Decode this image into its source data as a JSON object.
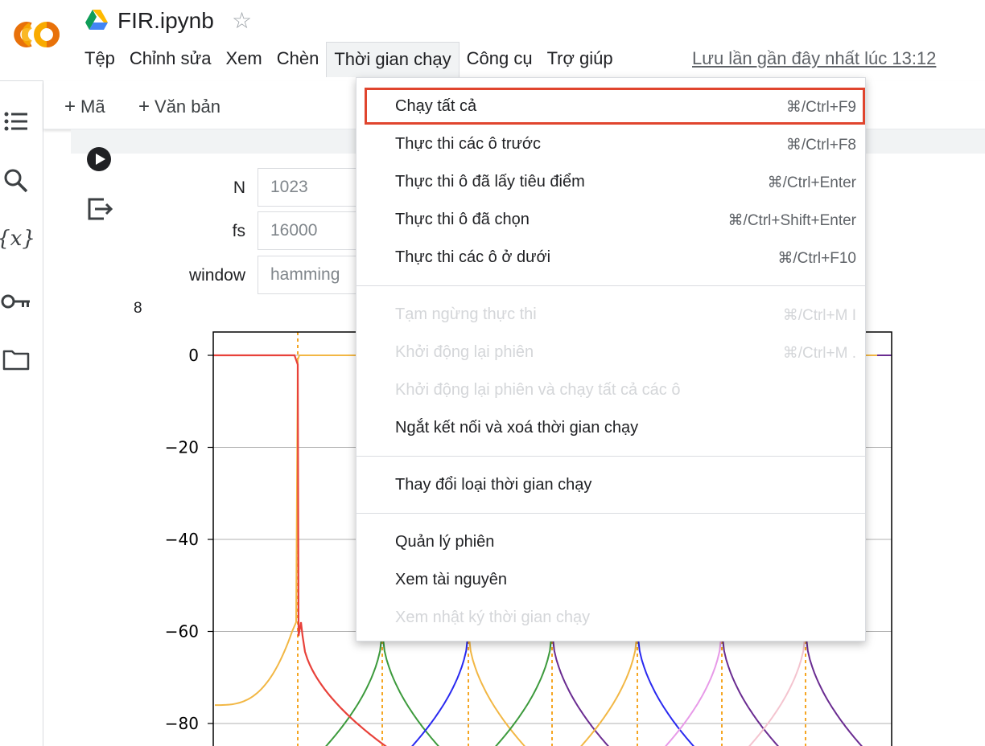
{
  "header": {
    "app_logo": "colab-logo",
    "title": "FIR.ipynb",
    "star_glyph": "☆",
    "last_saved": "Lưu lần gần đây nhất lúc 13:12"
  },
  "menubar": {
    "items": [
      {
        "label": "Tệp"
      },
      {
        "label": "Chỉnh sửa"
      },
      {
        "label": "Xem"
      },
      {
        "label": "Chèn"
      },
      {
        "label": "Thời gian chạy"
      },
      {
        "label": "Công cụ"
      },
      {
        "label": "Trợ giúp"
      }
    ],
    "active": "Thời gian chạy"
  },
  "toolbar": {
    "plus": "+",
    "add_code": "Mã",
    "add_text": "Văn bản"
  },
  "sidebar_icons": [
    "toc-icon",
    "search-icon",
    "variables-icon",
    "key-icon",
    "folder-icon"
  ],
  "sidebar_variables_glyph": "{x}",
  "form": {
    "fields": [
      {
        "label": "N",
        "value": "1023"
      },
      {
        "label": "fs",
        "value": "16000"
      },
      {
        "label": "window",
        "value": "hamming"
      }
    ]
  },
  "output": {
    "number": "8"
  },
  "chart_data": {
    "type": "line",
    "yticks": [
      "0",
      "−20",
      "−40",
      "−60",
      "−80"
    ],
    "ylim": [
      -85,
      5
    ],
    "grid": true,
    "series_colors": [
      "#e8413a",
      "#f2b744",
      "#3c9a3c",
      "#2929f0",
      "#6a2c91",
      "#e79ae8",
      "#f4c4cf"
    ]
  },
  "dropdown": {
    "groups": [
      [
        {
          "label": "Chạy tất cả",
          "shortcut": "⌘/Ctrl+F9",
          "enabled": true,
          "highlight": true
        },
        {
          "label": "Thực thi các ô trước",
          "shortcut": "⌘/Ctrl+F8",
          "enabled": true
        },
        {
          "label": "Thực thi ô đã lấy tiêu điểm",
          "shortcut": "⌘/Ctrl+Enter",
          "enabled": true
        },
        {
          "label": "Thực thi ô đã chọn",
          "shortcut": "⌘/Ctrl+Shift+Enter",
          "enabled": true
        },
        {
          "label": "Thực thi các ô ở dưới",
          "shortcut": "⌘/Ctrl+F10",
          "enabled": true
        }
      ],
      [
        {
          "label": "Tạm ngừng thực thi",
          "shortcut": "⌘/Ctrl+M I",
          "enabled": false
        },
        {
          "label": "Khởi động lại phiên",
          "shortcut": "⌘/Ctrl+M .",
          "enabled": false
        },
        {
          "label": "Khởi động lại phiên và chạy tất cả các ô",
          "shortcut": "",
          "enabled": false
        },
        {
          "label": "Ngắt kết nối và xoá thời gian chạy",
          "shortcut": "",
          "enabled": true
        }
      ],
      [
        {
          "label": "Thay đổi loại thời gian chạy",
          "shortcut": "",
          "enabled": true
        }
      ],
      [
        {
          "label": "Quản lý phiên",
          "shortcut": "",
          "enabled": true
        },
        {
          "label": "Xem tài nguyên",
          "shortcut": "",
          "enabled": true
        },
        {
          "label": "Xem nhật ký thời gian chạy",
          "shortcut": "",
          "enabled": false
        }
      ]
    ]
  }
}
